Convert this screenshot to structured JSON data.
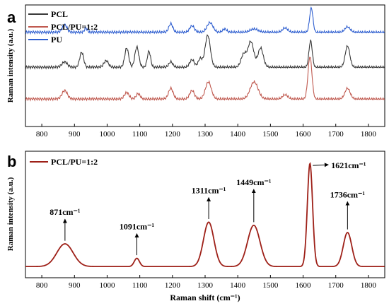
{
  "chart_data": [
    {
      "panel_label": "a",
      "type": "line",
      "xlabel": "",
      "ylabel": "Raman intensity (a.u.)",
      "xlim": [
        750,
        1850
      ],
      "xticks": [
        800,
        900,
        1000,
        1100,
        1200,
        1300,
        1400,
        1500,
        1600,
        1700,
        1800
      ],
      "legend": "top-left",
      "series": [
        {
          "name": "PCL",
          "color": "#3a3a3a",
          "baseline": 0.5,
          "noise": 0.012,
          "peaks": [
            [
              870,
              0.05,
              8
            ],
            [
              922,
              0.14,
              6
            ],
            [
              997,
              0.06,
              7
            ],
            [
              1060,
              0.18,
              6
            ],
            [
              1091,
              0.19,
              6
            ],
            [
              1128,
              0.15,
              5
            ],
            [
              1195,
              0.05,
              6
            ],
            [
              1260,
              0.07,
              7
            ],
            [
              1285,
              0.08,
              6
            ],
            [
              1308,
              0.3,
              8
            ],
            [
              1418,
              0.12,
              8
            ],
            [
              1440,
              0.24,
              9
            ],
            [
              1470,
              0.18,
              8
            ],
            [
              1623,
              0.25,
              5
            ],
            [
              1736,
              0.2,
              7
            ]
          ]
        },
        {
          "name": "PCL/PU=1:2",
          "color": "#c05a50",
          "baseline": 0.2,
          "noise": 0.012,
          "peaks": [
            [
              870,
              0.08,
              8
            ],
            [
              1060,
              0.06,
              7
            ],
            [
              1095,
              0.05,
              6
            ],
            [
              1195,
              0.1,
              7
            ],
            [
              1260,
              0.08,
              7
            ],
            [
              1310,
              0.16,
              9
            ],
            [
              1450,
              0.16,
              12
            ],
            [
              1545,
              0.04,
              8
            ],
            [
              1621,
              0.4,
              6
            ],
            [
              1736,
              0.1,
              8
            ]
          ]
        },
        {
          "name": "PU",
          "color": "#2f5fd0",
          "baseline": 0.83,
          "noise": 0.012,
          "peaks": [
            [
              870,
              0.07,
              7
            ],
            [
              935,
              0.04,
              4
            ],
            [
              1195,
              0.08,
              6
            ],
            [
              1260,
              0.06,
              7
            ],
            [
              1315,
              0.09,
              9
            ],
            [
              1360,
              0.03,
              6
            ],
            [
              1450,
              0.03,
              12
            ],
            [
              1545,
              0.04,
              8
            ],
            [
              1625,
              0.23,
              5
            ],
            [
              1736,
              0.05,
              8
            ]
          ]
        }
      ]
    },
    {
      "panel_label": "b",
      "type": "line",
      "xlabel": "Raman shift (cm⁻¹)",
      "ylabel": "Raman intensity (a.u.)",
      "xlim": [
        750,
        1850
      ],
      "ylim": [
        0,
        1.05
      ],
      "xticks": [
        800,
        900,
        1000,
        1100,
        1200,
        1300,
        1400,
        1500,
        1600,
        1700,
        1800
      ],
      "legend": "top-left",
      "series": [
        {
          "name": "PCL/PU=1:2",
          "color": "#9e2018",
          "baseline": 0.04,
          "peaks": [
            [
              871,
              0.22,
              25
            ],
            [
              1091,
              0.08,
              8
            ],
            [
              1311,
              0.43,
              16
            ],
            [
              1449,
              0.4,
              19
            ],
            [
              1621,
              1.0,
              8
            ],
            [
              1736,
              0.33,
              13
            ]
          ]
        }
      ],
      "annotations": [
        {
          "text": "871cm⁻¹",
          "x": 871,
          "y": 0.29,
          "ty": 0.54,
          "mode": "above"
        },
        {
          "text": "1091cm⁻¹",
          "x": 1091,
          "y": 0.15,
          "ty": 0.4,
          "mode": "above"
        },
        {
          "text": "1311cm⁻¹",
          "x": 1311,
          "y": 0.5,
          "ty": 0.75,
          "mode": "above"
        },
        {
          "text": "1449cm⁻¹",
          "x": 1449,
          "y": 0.47,
          "ty": 0.83,
          "mode": "above"
        },
        {
          "text": "1621cm⁻¹",
          "x": 1621,
          "y": 1.02,
          "ty": 1.02,
          "mode": "right"
        },
        {
          "text": "1736cm⁻¹",
          "x": 1736,
          "y": 0.4,
          "ty": 0.71,
          "mode": "above"
        }
      ]
    }
  ]
}
